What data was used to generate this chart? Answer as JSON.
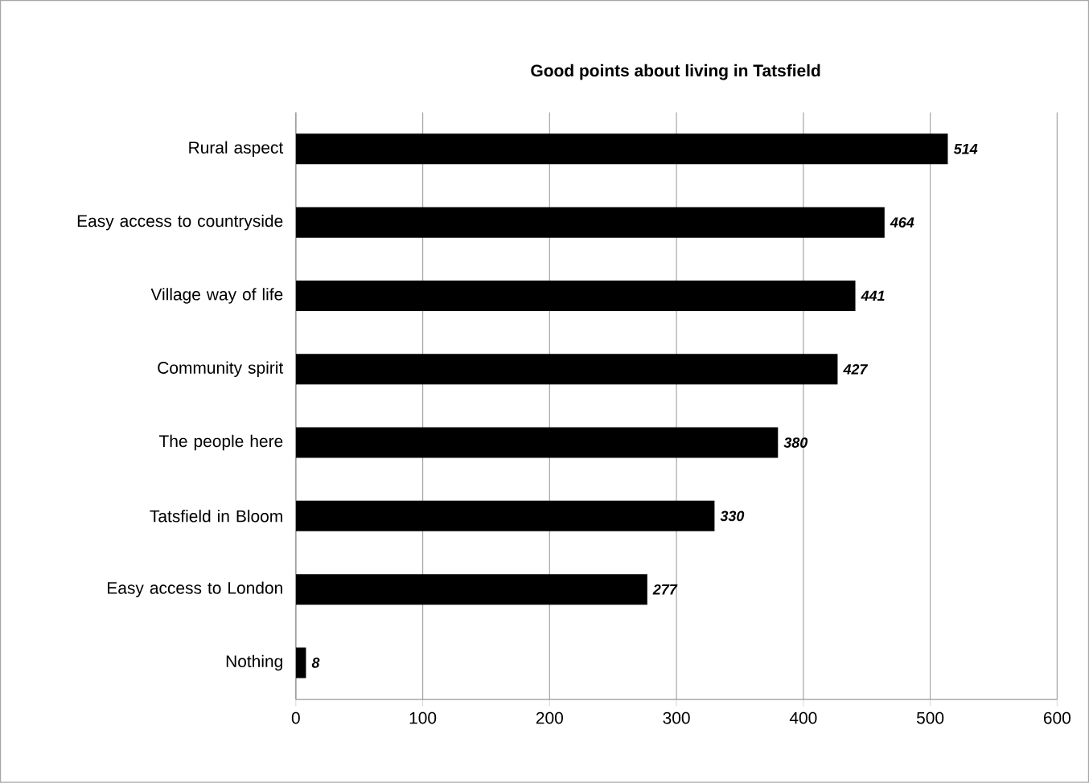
{
  "chart_data": {
    "type": "bar",
    "orientation": "horizontal",
    "title": "Good points about living in Tatsfield",
    "categories": [
      "Rural aspect",
      "Easy access to countryside",
      "Village way of life",
      "Community spirit",
      "The people here",
      "Tatsfield in Bloom",
      "Easy access to London",
      "Nothing"
    ],
    "values": [
      514,
      464,
      441,
      427,
      380,
      330,
      277,
      8
    ],
    "color": "#000000",
    "xlim": [
      0,
      600
    ],
    "xticks": [
      0,
      100,
      200,
      300,
      400,
      500,
      600
    ],
    "grid": "x",
    "data_labels": true
  }
}
